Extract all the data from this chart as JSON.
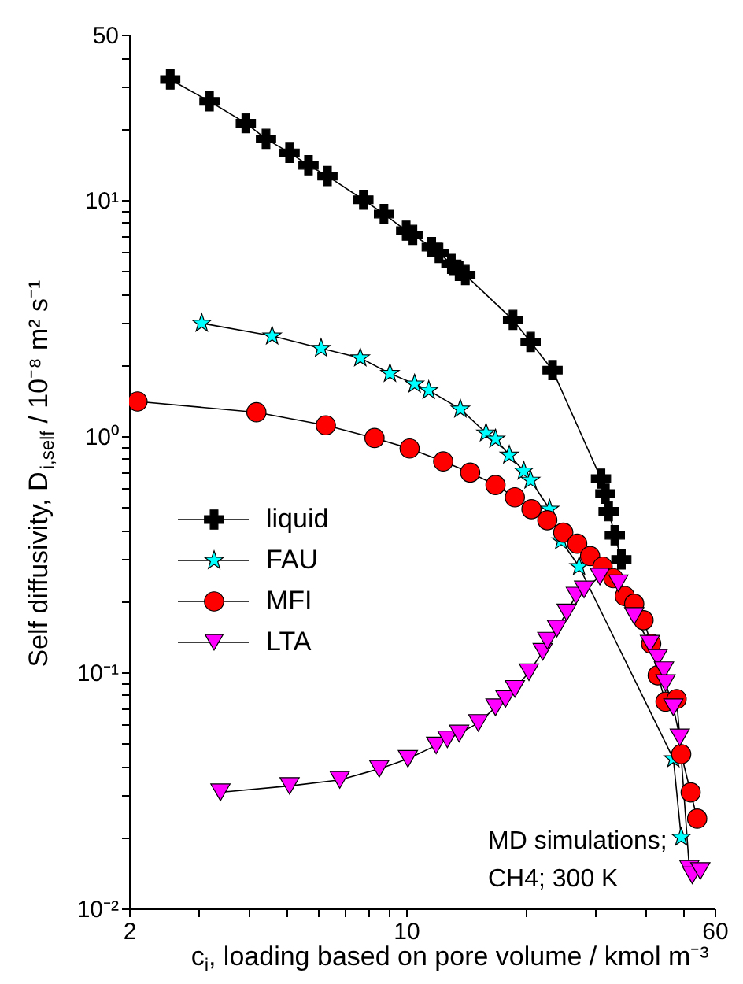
{
  "chart_data": {
    "type": "line",
    "xlabel": "c$_{i}$, loading based on pore volume  / kmol m⁻³",
    "ylabel": "Self diffusivity, D$_{i,self}$ / 10⁻⁸ m² s⁻¹",
    "log": "xy",
    "xlim": [
      2,
      60
    ],
    "ylim": [
      0.01,
      50
    ],
    "xticks": [
      2,
      {
        "value": 3,
        "label": null
      },
      {
        "value": 4,
        "label": null
      },
      {
        "value": 5,
        "label": null
      },
      {
        "value": 6,
        "label": null
      },
      {
        "value": 7,
        "label": null
      },
      {
        "value": 8,
        "label": null
      },
      {
        "value": 9,
        "label": null
      },
      10,
      {
        "value": 20,
        "label": null
      },
      {
        "value": 30,
        "label": null
      },
      {
        "value": 40,
        "label": null
      },
      {
        "value": 50,
        "label": null
      },
      60
    ],
    "yticks": [
      {
        "value": 0.01,
        "label": "10⁻²"
      },
      {
        "value": 0.02,
        "label": null
      },
      {
        "value": 0.03,
        "label": null
      },
      {
        "value": 0.04,
        "label": null
      },
      {
        "value": 0.05,
        "label": null
      },
      {
        "value": 0.06,
        "label": null
      },
      {
        "value": 0.07,
        "label": null
      },
      {
        "value": 0.08,
        "label": null
      },
      {
        "value": 0.09,
        "label": null
      },
      {
        "value": 0.1,
        "label": "10⁻¹"
      },
      {
        "value": 0.2,
        "label": null
      },
      {
        "value": 0.3,
        "label": null
      },
      {
        "value": 0.4,
        "label": null
      },
      {
        "value": 0.5,
        "label": null
      },
      {
        "value": 0.6,
        "label": null
      },
      {
        "value": 0.7,
        "label": null
      },
      {
        "value": 0.8,
        "label": null
      },
      {
        "value": 0.9,
        "label": null
      },
      {
        "value": 1,
        "label": "10⁰"
      },
      {
        "value": 2,
        "label": null
      },
      {
        "value": 3,
        "label": null
      },
      {
        "value": 4,
        "label": null
      },
      {
        "value": 5,
        "label": null
      },
      {
        "value": 6,
        "label": null
      },
      {
        "value": 7,
        "label": null
      },
      {
        "value": 8,
        "label": null
      },
      {
        "value": 9,
        "label": null
      },
      {
        "value": 10,
        "label": "10¹"
      },
      {
        "value": 20,
        "label": null
      },
      {
        "value": 30,
        "label": null
      },
      {
        "value": 40,
        "label": null
      },
      50
    ],
    "grid": false,
    "legend": "left",
    "line_style": "solid",
    "series": [
      {
        "name": "liquid",
        "color": "#000000",
        "marker": "cross",
        "x": [
          2.54,
          3.19,
          3.94,
          4.43,
          5.08,
          5.67,
          6.33,
          7.8,
          8.79,
          10.0,
          10.4,
          11.6,
          12.1,
          13.0,
          13.6,
          14.1,
          18.6,
          20.6,
          23.4,
          31.0,
          31.8,
          32.4,
          33.6,
          34.9
        ],
        "values": [
          32.3,
          26.1,
          21.1,
          18.1,
          15.8,
          14.0,
          12.6,
          10.0,
          8.7,
          7.4,
          7.1,
          6.3,
          5.95,
          5.35,
          5.0,
          4.8,
          3.1,
          2.5,
          1.9,
          0.66,
          0.57,
          0.48,
          0.38,
          0.3
        ]
      },
      {
        "name": "FAU",
        "color": "#00ffff",
        "marker": "star",
        "x": [
          3.05,
          4.59,
          6.1,
          7.66,
          9.1,
          10.5,
          11.4,
          13.7,
          15.9,
          16.8,
          18.2,
          19.8,
          20.6,
          23.0,
          24.6,
          27.3,
          47.2,
          49.4
        ],
        "values": [
          3.0,
          2.65,
          2.35,
          2.14,
          1.84,
          1.66,
          1.56,
          1.3,
          1.03,
          0.97,
          0.83,
          0.71,
          0.65,
          0.49,
          0.36,
          0.28,
          0.043,
          0.02
        ]
      },
      {
        "name": "MFI",
        "color": "#ff0000",
        "marker": "circle",
        "x": [
          2.1,
          4.19,
          6.27,
          8.32,
          10.2,
          12.4,
          14.5,
          16.8,
          18.8,
          20.7,
          22.7,
          24.9,
          27.0,
          29.1,
          31.3,
          33.3,
          35.6,
          37.6,
          39.7,
          41.5,
          43.1,
          45.1,
          48.1,
          49.4,
          52.2,
          54.2
        ],
        "values": [
          1.4,
          1.26,
          1.11,
          0.98,
          0.885,
          0.78,
          0.7,
          0.62,
          0.55,
          0.49,
          0.44,
          0.39,
          0.35,
          0.31,
          0.28,
          0.25,
          0.21,
          0.195,
          0.166,
          0.132,
          0.097,
          0.075,
          0.077,
          0.045,
          0.031,
          0.024
        ]
      },
      {
        "name": "LTA",
        "color": "#ff00ff",
        "marker": "triangle",
        "x": [
          3.4,
          5.08,
          6.8,
          8.55,
          10.1,
          11.9,
          12.7,
          13.6,
          15.2,
          16.8,
          17.8,
          18.8,
          20.4,
          22.1,
          22.7,
          24.0,
          25.4,
          26.8,
          28.1,
          30.8,
          34.3,
          37.6,
          41.2,
          43.1,
          44.7,
          45.1,
          47.2,
          49.0,
          51.8,
          52.7,
          55.2
        ],
        "values": [
          0.031,
          0.033,
          0.035,
          0.039,
          0.043,
          0.049,
          0.052,
          0.055,
          0.061,
          0.071,
          0.077,
          0.085,
          0.1,
          0.122,
          0.136,
          0.153,
          0.179,
          0.211,
          0.224,
          0.254,
          0.238,
          0.173,
          0.132,
          0.115,
          0.102,
          0.09,
          0.071,
          0.053,
          0.0147,
          0.0138,
          0.0144
        ]
      }
    ],
    "annotations": [
      "MD simulations;",
      "CH4; 300 K"
    ]
  }
}
